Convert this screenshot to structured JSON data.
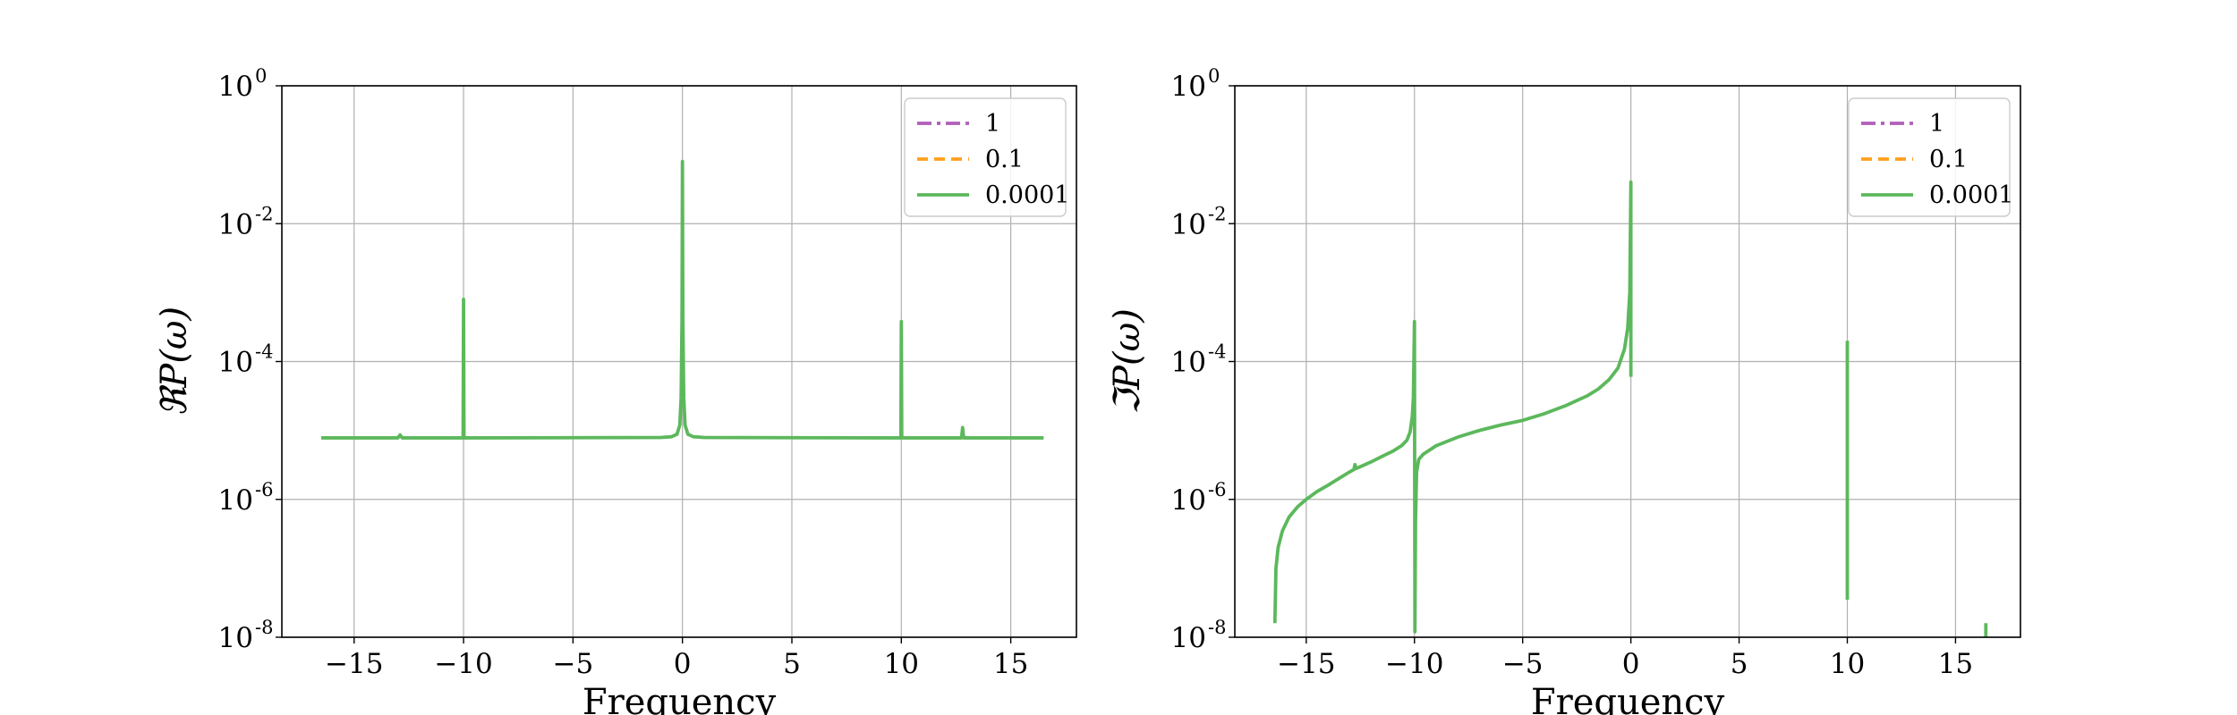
{
  "chart_data": [
    {
      "type": "line",
      "ylabel": "ℜP(ω)",
      "xlabel": "Frequency",
      "xlim": [
        -18.3,
        18.0
      ],
      "ylim_log10": [
        -8,
        0
      ],
      "y_scale": "log",
      "x_ticks": [
        -15,
        -10,
        -5,
        0,
        5,
        10,
        15
      ],
      "x_tick_labels": [
        "−15",
        "−10",
        "−5",
        "0",
        "5",
        "10",
        "15"
      ],
      "y_tick_exponents": [
        -8,
        -6,
        -4,
        -2,
        0
      ],
      "grid": true,
      "legend_position": "top-right",
      "series": [
        {
          "name": "1",
          "color": "#b05fb8",
          "style": "dashdot",
          "points": []
        },
        {
          "name": "0.1",
          "color": "#ff9f1c",
          "style": "dashed",
          "points": []
        },
        {
          "name": "0.0001",
          "color": "#5cb85c",
          "style": "solid",
          "points": [
            [
              -16.5,
              7.8e-06
            ],
            [
              -13.0,
              7.8e-06
            ],
            [
              -12.9,
              8.6e-06
            ],
            [
              -12.8,
              7.8e-06
            ],
            [
              -10.08,
              7.8e-06
            ],
            [
              -10.02,
              7.8e-06
            ],
            [
              -10.0,
              0.0008
            ],
            [
              -9.98,
              7.8e-06
            ],
            [
              -9.9,
              7.8e-06
            ],
            [
              -1.0,
              7.9e-06
            ],
            [
              -0.5,
              8.1e-06
            ],
            [
              -0.25,
              8.8e-06
            ],
            [
              -0.12,
              1.2e-05
            ],
            [
              -0.06,
              3e-05
            ],
            [
              -0.02,
              0.0004
            ],
            [
              0.0,
              0.08
            ],
            [
              0.02,
              0.0004
            ],
            [
              0.06,
              3e-05
            ],
            [
              0.12,
              1.2e-05
            ],
            [
              0.25,
              8.8e-06
            ],
            [
              0.5,
              8.1e-06
            ],
            [
              1.0,
              7.9e-06
            ],
            [
              9.9,
              7.8e-06
            ],
            [
              9.98,
              7.8e-06
            ],
            [
              10.0,
              0.00038
            ],
            [
              10.02,
              7.8e-06
            ],
            [
              10.1,
              7.8e-06
            ],
            [
              12.75,
              7.8e-06
            ],
            [
              12.8,
              1.1e-05
            ],
            [
              12.85,
              7.8e-06
            ],
            [
              16.5,
              7.8e-06
            ]
          ]
        }
      ]
    },
    {
      "type": "line",
      "ylabel": "ℑP(ω)",
      "xlabel": "Frequency",
      "xlim": [
        -18.3,
        18.0
      ],
      "ylim_log10": [
        -8,
        0
      ],
      "y_scale": "log",
      "x_ticks": [
        -15,
        -10,
        -5,
        0,
        5,
        10,
        15
      ],
      "x_tick_labels": [
        "−15",
        "−10",
        "−5",
        "0",
        "5",
        "10",
        "15"
      ],
      "y_tick_exponents": [
        -8,
        -6,
        -4,
        -2,
        0
      ],
      "grid": true,
      "legend_position": "top-right",
      "series": [
        {
          "name": "1",
          "color": "#b05fb8",
          "style": "dashdot",
          "points": []
        },
        {
          "name": "0.1",
          "color": "#ff9f1c",
          "style": "dashed",
          "points": []
        },
        {
          "name": "0.0001",
          "color": "#5cb85c",
          "style": "solid",
          "points": [
            [
              -16.45,
              1.6e-08
            ],
            [
              -16.4,
              1e-07
            ],
            [
              -16.3,
              2e-07
            ],
            [
              -16.1,
              3.5e-07
            ],
            [
              -15.8,
              5.5e-07
            ],
            [
              -15.4,
              7.8e-07
            ],
            [
              -15.0,
              1e-06
            ],
            [
              -14.5,
              1.3e-06
            ],
            [
              -14.0,
              1.6e-06
            ],
            [
              -13.5,
              2e-06
            ],
            [
              -13.0,
              2.5e-06
            ],
            [
              -12.8,
              2.7e-06
            ],
            [
              -12.75,
              3.2e-06
            ],
            [
              -12.7,
              2.8e-06
            ],
            [
              -12.0,
              3.5e-06
            ],
            [
              -11.5,
              4.2e-06
            ],
            [
              -11.0,
              5e-06
            ],
            [
              -10.6,
              6e-06
            ],
            [
              -10.35,
              7.2e-06
            ],
            [
              -10.2,
              9.5e-06
            ],
            [
              -10.1,
              1.6e-05
            ],
            [
              -10.05,
              3e-05
            ],
            [
              -10.0,
              0.00038
            ],
            [
              -9.98,
              1.2e-08
            ],
            [
              -9.95,
              5e-07
            ],
            [
              -9.9,
              2.5e-06
            ],
            [
              -9.8,
              3.8e-06
            ],
            [
              -9.6,
              4.5e-06
            ],
            [
              -9.0,
              6e-06
            ],
            [
              -8.0,
              8e-06
            ],
            [
              -7.0,
              1e-05
            ],
            [
              -6.0,
              1.2e-05
            ],
            [
              -5.0,
              1.4e-05
            ],
            [
              -4.0,
              1.75e-05
            ],
            [
              -3.0,
              2.3e-05
            ],
            [
              -2.0,
              3.2e-05
            ],
            [
              -1.5,
              4e-05
            ],
            [
              -1.0,
              5.5e-05
            ],
            [
              -0.6,
              8e-05
            ],
            [
              -0.3,
              0.00015
            ],
            [
              -0.15,
              0.0003
            ],
            [
              -0.05,
              0.001
            ],
            [
              0.0,
              0.04
            ],
            [
              0.0,
              6e-05
            ]
          ]
        },
        {
          "name": "",
          "color": "#5cb85c",
          "style": "solid",
          "points": [
            [
              10.0,
              3.5e-08
            ],
            [
              10.0,
              0.0002
            ]
          ]
        },
        {
          "name": "",
          "color": "#5cb85c",
          "style": "solid",
          "points": [
            [
              16.4,
              1e-08
            ],
            [
              16.4,
              1.6e-08
            ]
          ]
        }
      ]
    }
  ]
}
